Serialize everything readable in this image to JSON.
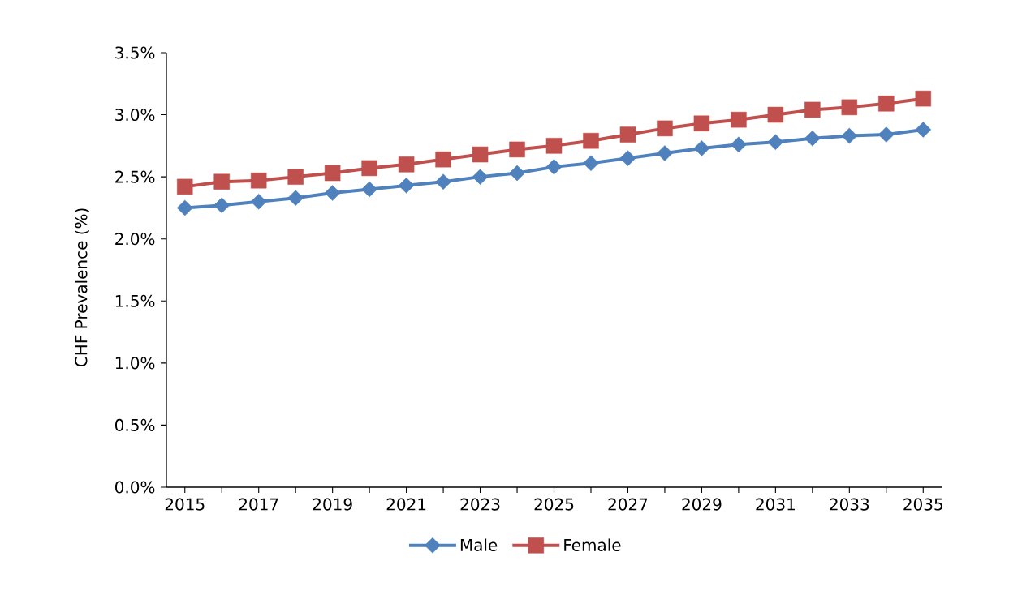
{
  "chart_data": {
    "type": "line",
    "ylabel": "CHF Prevalence (%)",
    "x": [
      2015,
      2016,
      2017,
      2018,
      2019,
      2020,
      2021,
      2022,
      2023,
      2024,
      2025,
      2026,
      2027,
      2028,
      2029,
      2030,
      2031,
      2032,
      2033,
      2034,
      2035
    ],
    "xlim": [
      2014.5,
      2035.5
    ],
    "xticks": [
      2015,
      {
        "value": 2016,
        "label": null
      },
      2017,
      {
        "value": 2018,
        "label": null
      },
      2019,
      {
        "value": 2020,
        "label": null
      },
      2021,
      {
        "value": 2022,
        "label": null
      },
      2023,
      {
        "value": 2024,
        "label": null
      },
      2025,
      {
        "value": 2026,
        "label": null
      },
      2027,
      {
        "value": 2028,
        "label": null
      },
      2029,
      {
        "value": 2030,
        "label": null
      },
      2031,
      {
        "value": 2032,
        "label": null
      },
      2033,
      {
        "value": 2034,
        "label": null
      },
      2035
    ],
    "ylim": [
      0,
      3.5
    ],
    "yticks": [
      {
        "value": 0,
        "label": "0.0%"
      },
      {
        "value": 0.5,
        "label": "0.5%"
      },
      {
        "value": 1,
        "label": "1.0%"
      },
      {
        "value": 1.5,
        "label": "1.5%"
      },
      {
        "value": 2,
        "label": "2.0%"
      },
      {
        "value": 2.5,
        "label": "2.5%"
      },
      {
        "value": 3,
        "label": "3.0%"
      },
      {
        "value": 3.5,
        "label": "3.5%"
      }
    ],
    "series": [
      {
        "name": "Male",
        "color": "#4f81bd",
        "marker": "diamond",
        "values": [
          2.25,
          2.27,
          2.3,
          2.33,
          2.37,
          2.4,
          2.43,
          2.46,
          2.5,
          2.53,
          2.58,
          2.61,
          2.65,
          2.69,
          2.73,
          2.76,
          2.78,
          2.81,
          2.83,
          2.84,
          2.88
        ]
      },
      {
        "name": "Female",
        "color": "#c0504d",
        "marker": "square",
        "values": [
          2.42,
          2.46,
          2.47,
          2.5,
          2.53,
          2.57,
          2.6,
          2.64,
          2.68,
          2.72,
          2.75,
          2.79,
          2.84,
          2.89,
          2.93,
          2.96,
          3.0,
          3.04,
          3.06,
          3.09,
          3.13
        ]
      }
    ],
    "legend": "bottom",
    "line_style": "solid"
  }
}
